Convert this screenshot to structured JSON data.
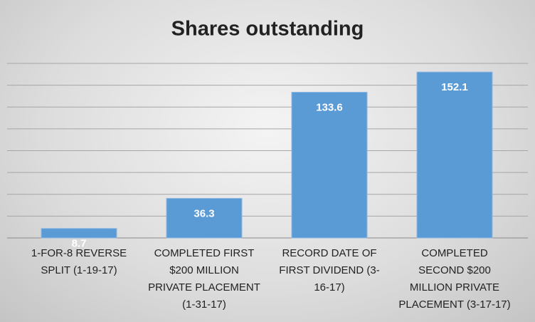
{
  "chart_data": {
    "type": "bar",
    "title": "Shares outstanding",
    "categories": [
      "1-FOR-8 REVERSE SPLIT (1-19-17)",
      "COMPLETED FIRST $200 MILLION PRIVATE PLACEMENT (1-31-17)",
      "RECORD DATE OF FIRST DIVIDEND (3-16-17)",
      "COMPLETED SECOND $200 MILLION PRIVATE PLACEMENT (3-17-17)"
    ],
    "values": [
      8.7,
      36.3,
      133.6,
      152.1
    ],
    "color": "#5b9bd5",
    "ylim": [
      0,
      160
    ],
    "yticks": [
      0,
      20,
      40,
      60,
      80,
      100,
      120,
      140,
      160
    ],
    "grid": true
  }
}
